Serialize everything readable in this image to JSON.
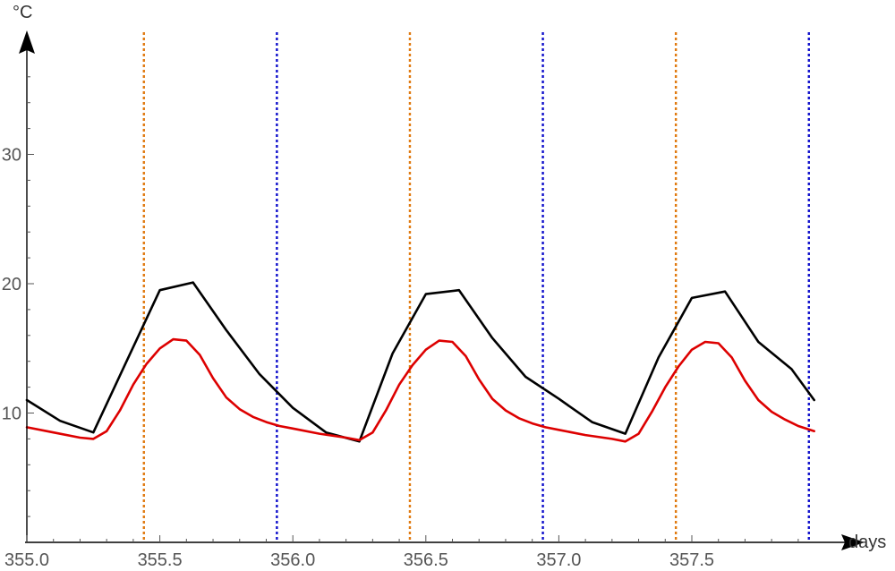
{
  "chart_data": {
    "type": "line",
    "xlabel": "days",
    "ylabel": "°C",
    "xlim": [
      355.0,
      358.0
    ],
    "ylim": [
      0,
      38
    ],
    "x_ticks": [
      355.0,
      355.5,
      356.0,
      356.5,
      357.0,
      357.5
    ],
    "x_tick_labels": [
      "355.0",
      "355.5",
      "356.0",
      "356.5",
      "357.0",
      "357.5"
    ],
    "y_ticks": [
      10,
      20,
      30
    ],
    "y_tick_labels": [
      "10",
      "20",
      "30"
    ],
    "grid": false,
    "series": [
      {
        "color": "#000000",
        "x": [
          355.0,
          355.125,
          355.25,
          355.375,
          355.5,
          355.625,
          355.75,
          355.875,
          356.0,
          356.125,
          356.25,
          356.375,
          356.5,
          356.625,
          356.75,
          356.875,
          357.0,
          357.125,
          357.25,
          357.375,
          357.5,
          357.625,
          357.75,
          357.875,
          357.96
        ],
        "values": [
          11.0,
          9.4,
          8.5,
          14.0,
          19.5,
          20.1,
          16.4,
          13.0,
          10.4,
          8.5,
          7.8,
          14.6,
          19.2,
          19.5,
          15.8,
          12.8,
          11.1,
          9.3,
          8.4,
          14.3,
          18.9,
          19.4,
          15.5,
          13.4,
          11.0
        ]
      },
      {
        "color": "#dd0000",
        "x": [
          355.0,
          355.1,
          355.2,
          355.25,
          355.3,
          355.35,
          355.4,
          355.45,
          355.5,
          355.55,
          355.6,
          355.65,
          355.7,
          355.75,
          355.8,
          355.85,
          355.9,
          355.95,
          356.0,
          356.1,
          356.2,
          356.25,
          356.3,
          356.35,
          356.4,
          356.45,
          356.5,
          356.55,
          356.6,
          356.65,
          356.7,
          356.75,
          356.8,
          356.85,
          356.9,
          356.95,
          357.0,
          357.1,
          357.2,
          357.25,
          357.3,
          357.35,
          357.4,
          357.45,
          357.5,
          357.55,
          357.6,
          357.65,
          357.7,
          357.75,
          357.8,
          357.85,
          357.9,
          357.96
        ],
        "values": [
          8.9,
          8.5,
          8.1,
          8.0,
          8.6,
          10.2,
          12.2,
          13.8,
          15.0,
          15.7,
          15.6,
          14.5,
          12.7,
          11.2,
          10.3,
          9.7,
          9.3,
          9.0,
          8.8,
          8.4,
          8.1,
          7.9,
          8.5,
          10.2,
          12.2,
          13.7,
          14.9,
          15.6,
          15.5,
          14.4,
          12.6,
          11.1,
          10.2,
          9.6,
          9.2,
          8.9,
          8.7,
          8.3,
          8.0,
          7.8,
          8.4,
          10.1,
          12.0,
          13.6,
          14.9,
          15.5,
          15.4,
          14.3,
          12.5,
          11.0,
          10.1,
          9.5,
          9.0,
          8.6
        ]
      }
    ],
    "reference_lines": [
      {
        "x": 355.44,
        "color": "#e07a10",
        "style": "dotted"
      },
      {
        "x": 355.94,
        "color": "#1010cc",
        "style": "dotted"
      },
      {
        "x": 356.44,
        "color": "#e07a10",
        "style": "dotted"
      },
      {
        "x": 356.94,
        "color": "#1010cc",
        "style": "dotted"
      },
      {
        "x": 357.44,
        "color": "#e07a10",
        "style": "dotted"
      },
      {
        "x": 357.94,
        "color": "#1010cc",
        "style": "dotted"
      }
    ]
  }
}
